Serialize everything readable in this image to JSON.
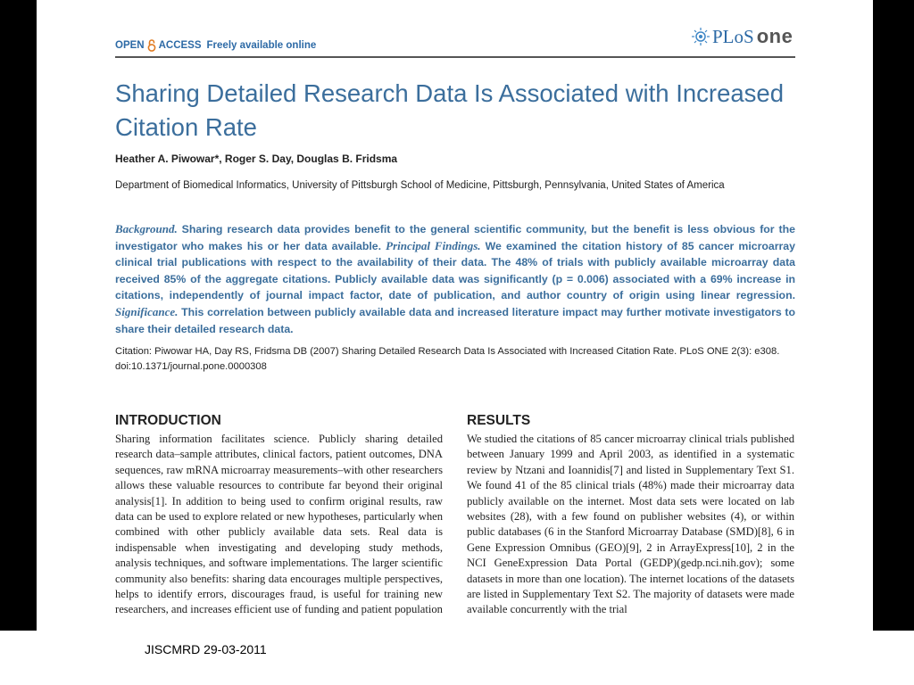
{
  "header": {
    "open_access": "OPEN",
    "access": "ACCESS",
    "freely_available": "Freely available online",
    "journal_plos": "PLoS",
    "journal_one": "one"
  },
  "article": {
    "title": "Sharing Detailed Research Data Is Associated with Increased Citation Rate",
    "authors": "Heather A. Piwowar*, Roger S. Day, Douglas B. Fridsma",
    "affiliation": "Department of Biomedical Informatics, University of Pittsburgh School of Medicine, Pittsburgh, Pennsylvania, United States of America",
    "abstract": {
      "background_label": "Background.",
      "background_text": " Sharing research data provides benefit to the general scientific community, but the benefit is less obvious for the investigator who makes his or her data available. ",
      "findings_label": "Principal Findings.",
      "findings_text": " We examined the citation history of 85 cancer microarray clinical trial publications with respect to the availability of their data. The 48% of trials with publicly available microarray data received 85% of the aggregate citations. Publicly available data was significantly (p = 0.006) associated with a 69% increase in citations, independently of journal impact factor, date of publication, and author country of origin using linear regression. ",
      "significance_label": "Significance.",
      "significance_text": " This correlation between publicly available data and increased literature impact may further motivate investigators to share their detailed research data."
    },
    "citation": "Citation: Piwowar HA, Day RS, Fridsma DB (2007) Sharing Detailed Research Data Is Associated with Increased Citation Rate. PLoS ONE 2(3): e308. doi:10.1371/journal.pone.0000308",
    "introduction": {
      "heading": "INTRODUCTION",
      "text": "Sharing information facilitates science. Publicly sharing detailed research data–sample attributes, clinical factors, patient outcomes, DNA sequences, raw mRNA microarray measurements–with other researchers allows these valuable resources to contribute far beyond their original analysis[1]. In addition to being used to confirm original results, raw data can be used to explore related or new hypotheses, particularly when combined with other publicly available data sets. Real data is indispensable when investigating and developing study methods, analysis techniques, and software implementations. The larger scientific community also benefits: sharing data encourages multiple perspectives, helps to identify errors, discourages fraud, is useful for training new researchers, and increases efficient use of funding and patient population"
    },
    "results": {
      "heading": "RESULTS",
      "text": "We studied the citations of 85 cancer microarray clinical trials published between January 1999 and April 2003, as identified in a systematic review by Ntzani and Ioannidis[7] and listed in Supplementary Text S1. We found 41 of the 85 clinical trials (48%) made their microarray data publicly available on the internet. Most data sets were located on lab websites (28), with a few found on publisher websites (4), or within public databases (6 in the Stanford Microarray Database (SMD)[8], 6 in Gene Expression Omnibus (GEO)[9], 2 in ArrayExpress[10], 2 in the NCI GeneExpression Data Portal (GEDP)(gedp.nci.nih.gov); some datasets in more than one location). The internet locations of the datasets are listed in Supplementary Text S2. The majority of datasets were made available concurrently with the trial"
    }
  },
  "footer": {
    "text": "JISCMRD 29-03-2011"
  }
}
